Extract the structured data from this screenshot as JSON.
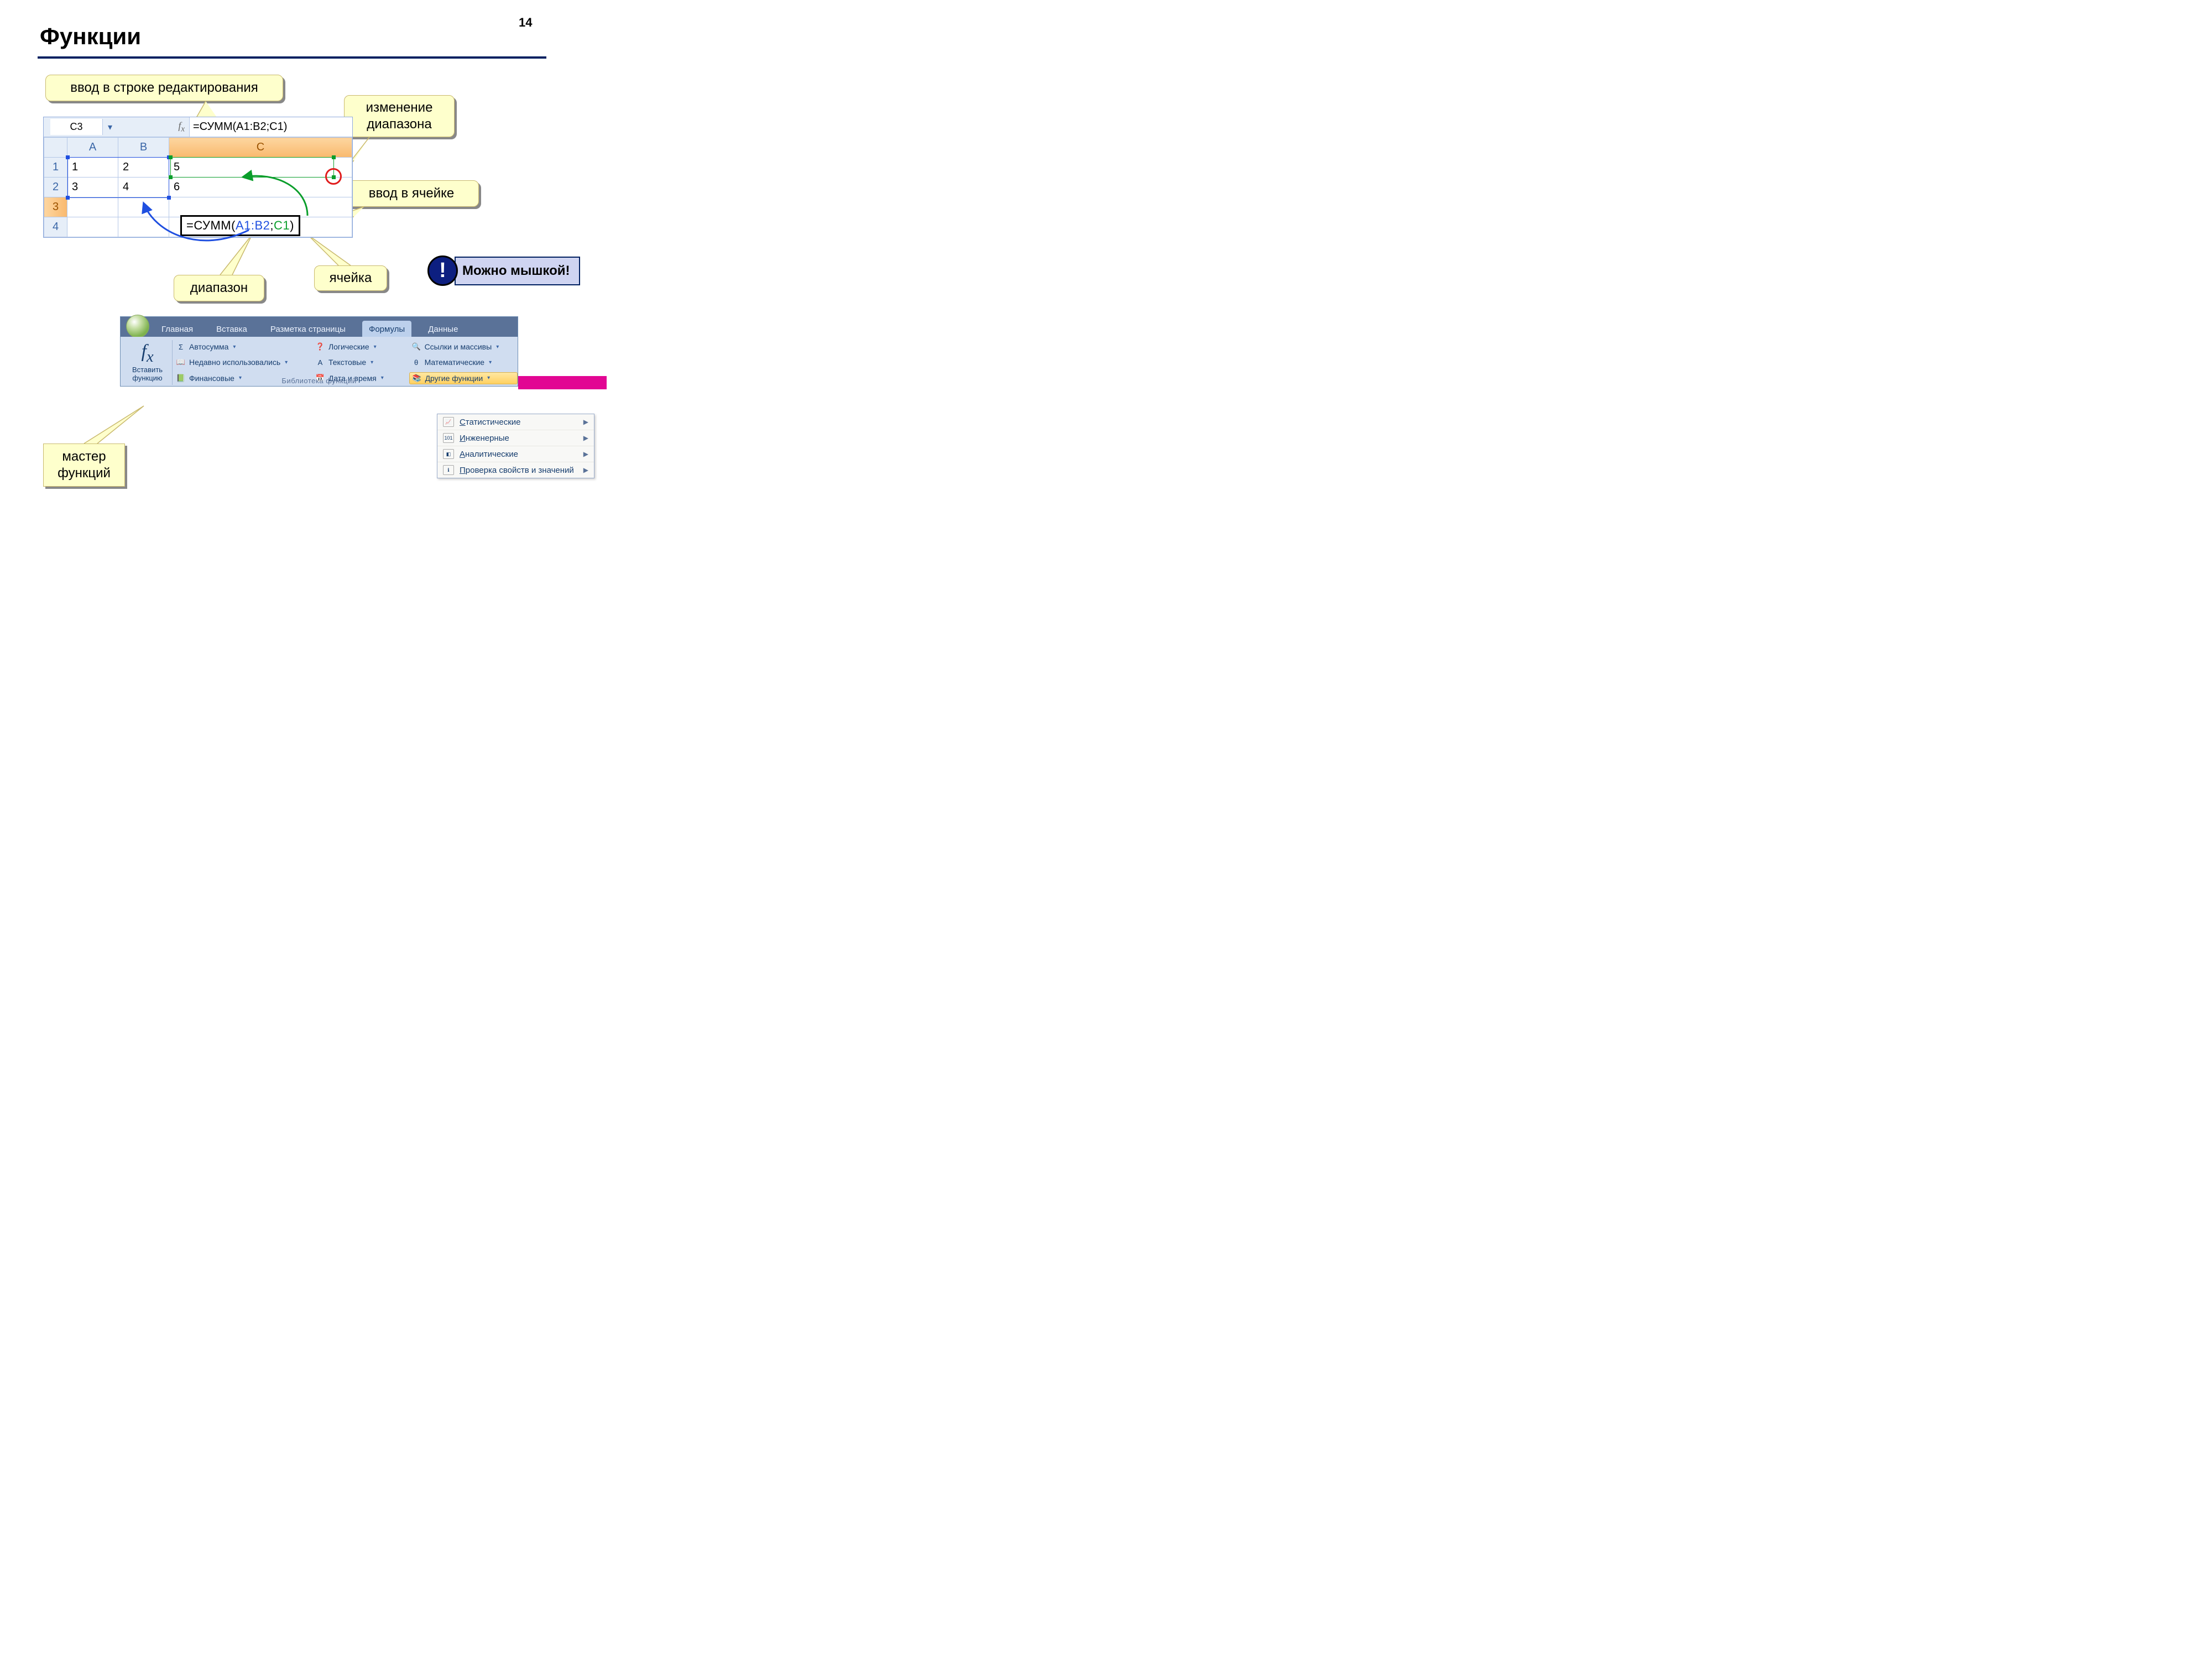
{
  "page": {
    "title": "Функции",
    "number": "14"
  },
  "colors": {
    "accent": "#002060",
    "callout_bg": "#feffcc",
    "callout_border": "#c9b96e",
    "blue_sel": "#1f4fe0",
    "green_sel": "#0a9e2b",
    "red": "#e01b1b",
    "info_bg": "#cfd4f1",
    "ribbon_bg": "#bcd0ec",
    "magenta": "#e20693"
  },
  "callouts": {
    "edit_bar": "ввод в строке редактирования",
    "range_change": "изменение\nдиапазона",
    "cell_input": "ввод в ячейке",
    "range": "диапазон",
    "cell": "ячейка",
    "wizard": "мастер\nфункций"
  },
  "excel": {
    "active_cell": "C3",
    "formula_bar": "=СУММ(A1:B2;C1)",
    "columns": [
      "A",
      "B",
      "C"
    ],
    "rows": [
      {
        "n": "1",
        "A": "1",
        "B": "2",
        "C": "5"
      },
      {
        "n": "2",
        "A": "3",
        "B": "4",
        "C": "6"
      },
      {
        "n": "3",
        "A": "",
        "B": "",
        "C": ""
      },
      {
        "n": "4",
        "A": "",
        "B": "",
        "C": ""
      }
    ],
    "cell_formula": {
      "prefix": "=СУММ(",
      "range": "A1:B2",
      "sep": ";",
      "ref": "C1",
      "suffix": ")"
    }
  },
  "info": {
    "bang": "!",
    "text": "Можно мышкой!"
  },
  "ribbon": {
    "tabs": [
      "Главная",
      "Вставка",
      "Разметка страницы",
      "Формулы",
      "Данные"
    ],
    "active_tab": 3,
    "insert_fn": "Вставить\nфункцию",
    "items": [
      {
        "icon": "Σ",
        "label": "Автосумма"
      },
      {
        "icon": "📖",
        "label": "Недавно использовались"
      },
      {
        "icon": "📗",
        "label": "Финансовые"
      },
      {
        "icon": "❓",
        "label": "Логические"
      },
      {
        "icon": "A",
        "label": "Текстовые"
      },
      {
        "icon": "📅",
        "label": "Дата и время"
      },
      {
        "icon": "🔍",
        "label": "Ссылки и массивы"
      },
      {
        "icon": "θ",
        "label": "Математические"
      },
      {
        "icon": "📚",
        "label": "Другие функции",
        "hl": true
      }
    ],
    "caption": "Библиотека функций"
  },
  "submenu": [
    {
      "icon": "📈",
      "label": "Статистические",
      "u": "С"
    },
    {
      "icon": "101",
      "label": "Инженерные",
      "u": "И"
    },
    {
      "icon": "◧",
      "label": "Аналитические",
      "u": "А"
    },
    {
      "icon": "ℹ",
      "label": "Проверка свойств и значений",
      "u": "П"
    }
  ]
}
